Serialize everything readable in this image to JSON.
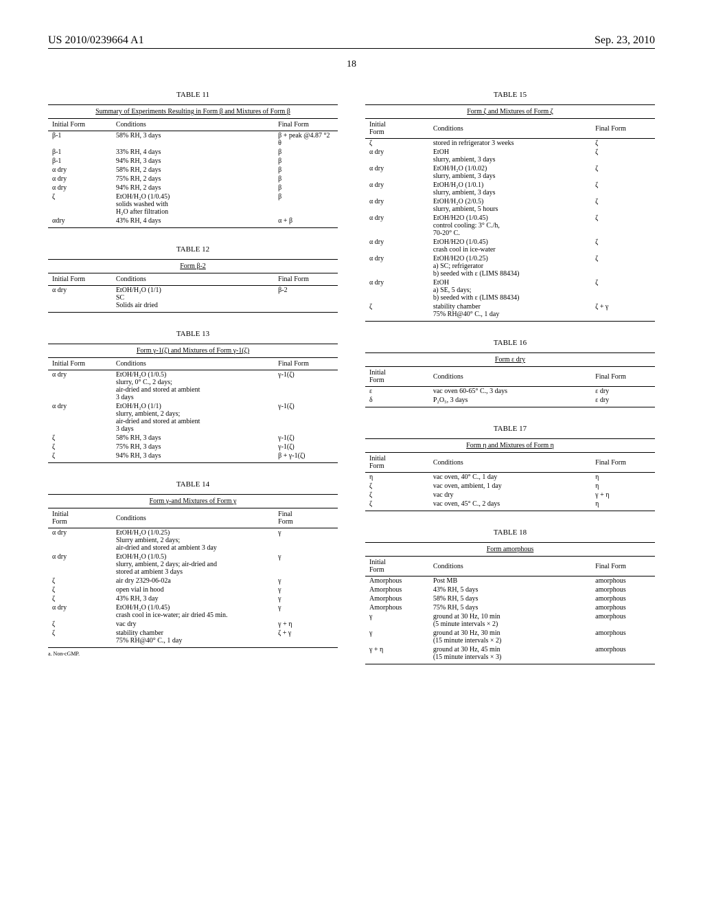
{
  "header": {
    "pub_number": "US 2010/0239664 A1",
    "pub_date": "Sep. 23, 2010",
    "page_number": "18"
  },
  "tables": {
    "t11": {
      "title": "TABLE 11",
      "caption": "Summary of Experiments Resulting in Form β and Mixtures of Form β",
      "headers": [
        "Initial Form",
        "Conditions",
        "Final Form"
      ],
      "rows": [
        [
          "β-1",
          "58% RH, 3 days",
          "β + peak @4.87 °2 θ"
        ],
        [
          "β-1",
          "33% RH, 4 days",
          "β"
        ],
        [
          "β-1",
          "94% RH, 3 days",
          "β"
        ],
        [
          "α dry",
          "58% RH, 2 days",
          "β"
        ],
        [
          "α dry",
          "75% RH, 2 days",
          "β"
        ],
        [
          "α dry",
          "94% RH, 2 days",
          "β"
        ],
        [
          "ζ",
          "EtOH/H₂O (1/0.45)\nsolids washed with\nH₂O after filtration",
          "β"
        ],
        [
          "αdry",
          "43% RH, 4 days",
          "α + β"
        ]
      ]
    },
    "t12": {
      "title": "TABLE 12",
      "caption": "Form β-2",
      "headers": [
        "Initial Form",
        "Conditions",
        "Final Form"
      ],
      "rows": [
        [
          "α dry",
          "EtOH/H₂O (1/1)\nSC\nSolids air dried",
          "β-2"
        ]
      ]
    },
    "t13": {
      "title": "TABLE 13",
      "caption": "Form γ-1(ζ) and Mixtures of Form γ-1(ζ)",
      "headers": [
        "Initial Form",
        "Conditions",
        "Final Form"
      ],
      "rows": [
        [
          "α dry",
          "EtOH/H₂O (1/0.5)\nslurry, 0° C., 2 days;\nair-dried and stored at ambient\n3 days",
          "γ-1(ζ)"
        ],
        [
          "α dry",
          "EtOH/H₂O (1/1)\nslurry, ambient, 2 days;\nair-dried and stored at ambient\n3 days",
          "γ-1(ζ)"
        ],
        [
          "ζ",
          "58% RH, 3 days",
          "γ-1(ζ)"
        ],
        [
          "ζ",
          "75% RH, 3 days",
          "γ-1(ζ)"
        ],
        [
          "ζ",
          "94% RH, 3 days",
          "β + γ-1(ζ)"
        ]
      ]
    },
    "t14": {
      "title": "TABLE 14",
      "caption": "Form γ-and Mixtures of Form γ",
      "headers": [
        "Initial\nForm",
        "Conditions",
        "Final\nForm"
      ],
      "rows": [
        [
          "α dry",
          "EtOH/H₂O (1/0.25)\nSlurry ambient, 2 days;\nair-dried and stored at ambient 3 day",
          "γ"
        ],
        [
          "α dry",
          "EtOH/H₂O (1/0.5)\nslurry, ambient, 2 days; air-dried and\nstored at ambient 3 days",
          "γ"
        ],
        [
          "ζ",
          "air dry 2329-06-02a",
          "γ"
        ],
        [
          "ζ",
          "open vial in hood",
          "γ"
        ],
        [
          "ζ",
          "43% RH, 3 day",
          "γ"
        ],
        [
          "α dry",
          "EtOH/H₂O (1/0.45)\ncrash cool in ice-water; air dried 45 min.",
          "γ"
        ],
        [
          "ζ",
          "vac dry",
          "γ + η"
        ],
        [
          "ζ",
          "stability chamber\n75% RH@40° C., 1 day",
          "ζ + γ"
        ]
      ],
      "footnote": "a. Non-cGMP."
    },
    "t15": {
      "title": "TABLE 15",
      "caption": "Form ζ and Mixtures of Form ζ",
      "headers": [
        "Initial\nForm",
        "Conditions",
        "Final Form"
      ],
      "rows": [
        [
          "ζ",
          "stored in refrigerator 3 weeks",
          "ζ"
        ],
        [
          "α dry",
          "EtOH\nslurry, ambient, 3 days",
          "ζ"
        ],
        [
          "α dry",
          "EtOH/H₂O (1/0.02)\nslurry, ambient, 3 days",
          "ζ"
        ],
        [
          "α dry",
          "EtOH/H₂O (1/0.1)\nslurry, ambient, 3 days",
          "ζ"
        ],
        [
          "α dry",
          "EtOH/H₂O (2/0.5)\nslurry, ambient, 5 hours",
          "ζ"
        ],
        [
          "α dry",
          "EtOH/H2O (1/0.45)\ncontrol cooling: 3° C./h,\n70-20° C.",
          "ζ"
        ],
        [
          "α dry",
          "EtOH/H2O (1/0.45)\ncrash cool in ice-water",
          "ζ"
        ],
        [
          "α dry",
          "EtOH/H2O (1/0.25)\na) SC; refrigerator\nb) seeded with ε (LIMS 88434)",
          "ζ"
        ],
        [
          "α dry",
          "EtOH\na) SE, 5 days;\nb) seeded with ε (LIMS 88434)",
          "ζ"
        ],
        [
          "ζ",
          "stability chamber\n75% RH@40° C., 1 day",
          "ζ + γ"
        ]
      ]
    },
    "t16": {
      "title": "TABLE 16",
      "caption": "Form ε dry",
      "headers": [
        "Initial\nForm",
        "Conditions",
        "Final Form"
      ],
      "rows": [
        [
          "ε",
          "vac oven 60-65° C., 3 days",
          "ε dry"
        ],
        [
          "δ",
          "P₂O₅, 3 days",
          "ε dry"
        ]
      ]
    },
    "t17": {
      "title": "TABLE 17",
      "caption": "Form η and Mixtures of Form η",
      "headers": [
        "Initial\nForm",
        "Conditions",
        "Final Form"
      ],
      "rows": [
        [
          "η",
          "vac oven, 40° C., 1 day",
          "η"
        ],
        [
          "ζ",
          "vac oven, ambient, 1 day",
          "η"
        ],
        [
          "ζ",
          "vac dry",
          "γ + η"
        ],
        [
          "ζ",
          "vac oven, 45° C., 2 days",
          "η"
        ]
      ]
    },
    "t18": {
      "title": "TABLE 18",
      "caption": "Form amorphous",
      "headers": [
        "Initial\nForm",
        "Conditions",
        "Final Form"
      ],
      "rows": [
        [
          "Amorphous",
          "Post MB",
          "amorphous"
        ],
        [
          "Amorphous",
          "43% RH, 5 days",
          "amorphous"
        ],
        [
          "Amorphous",
          "58% RH, 5 days",
          "amorphous"
        ],
        [
          "Amorphous",
          "75% RH, 5 days",
          "amorphous"
        ],
        [
          "γ",
          "ground at 30 Hz, 10 min\n(5 minute intervals × 2)",
          "amorphous"
        ],
        [
          "γ",
          "ground at 30 Hz, 30 min\n(15 minute intervals × 2)",
          "amorphous"
        ],
        [
          "γ + η",
          "ground at 30 Hz, 45 min\n(15 minute intervals × 3)",
          "amorphous"
        ]
      ]
    }
  }
}
